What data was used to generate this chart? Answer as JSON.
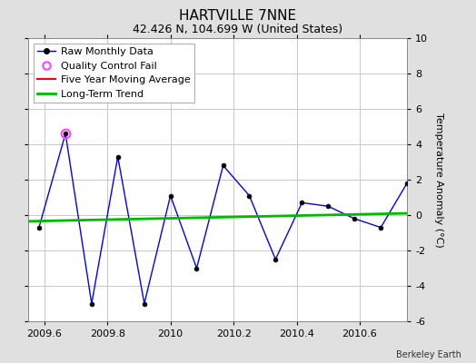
{
  "title": "HARTVILLE 7NNE",
  "subtitle": "42.426 N, 104.699 W (United States)",
  "ylabel": "Temperature Anomaly (°C)",
  "credit": "Berkeley Earth",
  "ylim": [
    -6,
    10
  ],
  "xlim": [
    2009.55,
    2010.75
  ],
  "xticks": [
    2009.6,
    2009.8,
    2010.0,
    2010.2,
    2010.4,
    2010.6
  ],
  "xtick_labels": [
    "2009.6",
    "2009.8",
    "2010",
    "2010.2",
    "2010.4",
    "2010.6"
  ],
  "yticks": [
    -6,
    -4,
    -2,
    0,
    2,
    4,
    6,
    8,
    10
  ],
  "ytick_labels": [
    "-6",
    "-4",
    "-2",
    "0",
    "2",
    "4",
    "6",
    "8",
    "10"
  ],
  "raw_x": [
    2009.583,
    2009.667,
    2009.75,
    2009.833,
    2009.917,
    2010.0,
    2010.083,
    2010.167,
    2010.25,
    2010.333,
    2010.417,
    2010.5,
    2010.583,
    2010.667,
    2010.75
  ],
  "raw_y": [
    -0.7,
    4.6,
    -5.0,
    3.3,
    -5.0,
    1.1,
    -3.0,
    2.8,
    1.1,
    -2.5,
    0.7,
    0.5,
    -0.2,
    -0.7,
    1.8
  ],
  "qc_fail_x": [
    2009.667
  ],
  "qc_fail_y": [
    4.6
  ],
  "trend_x": [
    2009.55,
    2010.75
  ],
  "trend_y": [
    -0.35,
    0.1
  ],
  "raw_color": "#0000ff",
  "raw_marker_color": "#000000",
  "qc_color": "#ff44ff",
  "trend_color": "#00bb00",
  "moving_avg_color": "#ff0000",
  "background_color": "#e0e0e0",
  "plot_bg_color": "#ffffff",
  "grid_color": "#c8c8c8",
  "title_fontsize": 11,
  "subtitle_fontsize": 9,
  "tick_fontsize": 8,
  "ylabel_fontsize": 8,
  "credit_fontsize": 7,
  "legend_fontsize": 8
}
